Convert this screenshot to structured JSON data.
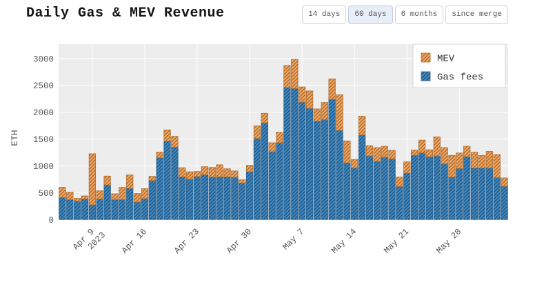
{
  "header": {
    "title": "Daily Gas & MEV Revenue"
  },
  "time_range_buttons": [
    {
      "label": "14 days",
      "active": false
    },
    {
      "label": "60 days",
      "active": true
    },
    {
      "label": "6 months",
      "active": false
    },
    {
      "label": "since merge",
      "active": false
    }
  ],
  "legend": [
    {
      "label": "MEV",
      "series": "MEV"
    },
    {
      "label": "Gas fees",
      "series": "Gas fees"
    }
  ],
  "colors": {
    "gas_fill": "#3E86BD",
    "gas_hatch": "#1E4E78",
    "gas_edge": "#2B618E",
    "mev_fill": "#F2A45F",
    "mev_hatch": "#9A6126",
    "mev_edge": "#AD6E2E",
    "plot_background": "#EDEDED",
    "gridline": "#FBFBFB",
    "tick_text": "#555555",
    "legend_text": "#333333",
    "legend_border": "#D8D8D8"
  },
  "chart_data": {
    "type": "bar",
    "stacked": true,
    "title": "Daily Gas & MEV Revenue",
    "xlabel": "",
    "ylabel": "ETH",
    "ylim": [
      0,
      3270
    ],
    "yticks": [
      0,
      500,
      1000,
      1500,
      2000,
      2500,
      3000
    ],
    "grid": true,
    "legend_position": "upper right",
    "categories": [
      "Apr 5",
      "Apr 6",
      "Apr 7",
      "Apr 8",
      "Apr 9",
      "Apr 10",
      "Apr 11",
      "Apr 12",
      "Apr 13",
      "Apr 14",
      "Apr 15",
      "Apr 16",
      "Apr 17",
      "Apr 18",
      "Apr 19",
      "Apr 20",
      "Apr 21",
      "Apr 22",
      "Apr 23",
      "Apr 24",
      "Apr 25",
      "Apr 26",
      "Apr 27",
      "Apr 28",
      "Apr 29",
      "Apr 30",
      "May 1",
      "May 2",
      "May 3",
      "May 4",
      "May 5",
      "May 6",
      "May 7",
      "May 8",
      "May 9",
      "May 10",
      "May 11",
      "May 12",
      "May 13",
      "May 14",
      "May 15",
      "May 16",
      "May 17",
      "May 18",
      "May 19",
      "May 20",
      "May 21",
      "May 22",
      "May 23",
      "May 24",
      "May 25",
      "May 26",
      "May 27",
      "May 28",
      "May 29",
      "May 30",
      "May 31",
      "Jun 1",
      "Jun 2",
      "Jun 3"
    ],
    "xticks": [
      {
        "label": "Apr 9",
        "sublabel": "2023",
        "index": 4
      },
      {
        "label": "Apr 16",
        "sublabel": "",
        "index": 11
      },
      {
        "label": "Apr 23",
        "sublabel": "",
        "index": 18
      },
      {
        "label": "Apr 30",
        "sublabel": "",
        "index": 25
      },
      {
        "label": "May 7",
        "sublabel": "",
        "index": 32
      },
      {
        "label": "May 14",
        "sublabel": "",
        "index": 39
      },
      {
        "label": "May 21",
        "sublabel": "",
        "index": 46
      },
      {
        "label": "May 28",
        "sublabel": "",
        "index": 53
      }
    ],
    "series": [
      {
        "name": "Gas fees",
        "values": [
          410,
          370,
          340,
          380,
          275,
          380,
          645,
          370,
          370,
          580,
          325,
          390,
          725,
          1150,
          1460,
          1350,
          795,
          750,
          800,
          835,
          790,
          795,
          795,
          785,
          680,
          890,
          1510,
          1800,
          1265,
          1430,
          2460,
          2440,
          2185,
          2070,
          1830,
          1860,
          2240,
          1660,
          1055,
          960,
          1575,
          1185,
          1085,
          1160,
          1130,
          615,
          865,
          1195,
          1240,
          1170,
          1185,
          1035,
          790,
          950,
          1170,
          960,
          960,
          960,
          780,
          620
        ]
      },
      {
        "name": "MEV",
        "values": [
          190,
          140,
          55,
          60,
          950,
          155,
          165,
          110,
          230,
          250,
          160,
          185,
          80,
          105,
          210,
          200,
          170,
          140,
          95,
          150,
          180,
          225,
          150,
          120,
          60,
          120,
          235,
          180,
          165,
          195,
          410,
          545,
          285,
          325,
          230,
          320,
          380,
          665,
          410,
          160,
          350,
          190,
          255,
          205,
          160,
          175,
          210,
          100,
          240,
          130,
          355,
          305,
          405,
          290,
          195,
          295,
          235,
          310,
          430,
          155
        ]
      }
    ]
  }
}
